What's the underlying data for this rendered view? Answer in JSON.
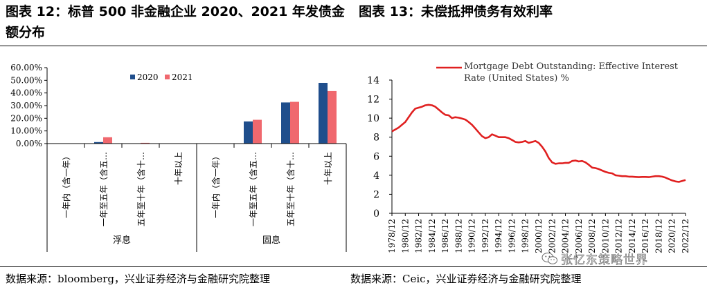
{
  "left_panel": {
    "title": "图表 12：标普 500 非金融企业 2020、2021 年发债金额分布",
    "source": "数据来源：bloomberg，兴业证券经济与金融研究院整理"
  },
  "right_panel": {
    "title": "图表 13：未偿抵押债务有效利率",
    "source": "数据来源：Ceic，兴业证券经济与金融研究院整理"
  },
  "watermark": {
    "text": "张忆东策略世界",
    "icon": "wechat-icon"
  },
  "colors": {
    "series_2020": "#1F4E8C",
    "series_2021": "#F0686E",
    "line": "#E02020"
  },
  "chart_data": [
    {
      "type": "bar",
      "title": "",
      "xlabel": "",
      "ylabel": "",
      "ylim": [
        0,
        60
      ],
      "y_ticks": [
        "60.00%",
        "50.00%",
        "40.00%",
        "30.00%",
        "20.00%",
        "10.00%",
        "0.00%"
      ],
      "y_tick_values": [
        60,
        50,
        40,
        30,
        20,
        10,
        0
      ],
      "categories": [
        "一年内（含一年）",
        "一年至五年（含五…",
        "五年至十年（含十…",
        "十年以上",
        "一年内（含一年）",
        "一年至五年（含五…",
        "五年至十年（含十…",
        "十年以上"
      ],
      "groups": [
        {
          "label": "浮息",
          "categories": [
            0,
            1,
            2,
            3
          ]
        },
        {
          "label": "固息",
          "categories": [
            4,
            5,
            6,
            7
          ]
        }
      ],
      "series": [
        {
          "name": "2020",
          "values": [
            0.0,
            1.2,
            0.2,
            0.0,
            0.0,
            17.5,
            32.5,
            48.0
          ]
        },
        {
          "name": "2021",
          "values": [
            0.0,
            5.0,
            0.6,
            0.0,
            0.0,
            18.8,
            33.0,
            41.5
          ]
        }
      ],
      "legend": "top-center",
      "grid": false
    },
    {
      "type": "line",
      "title": "",
      "xlabel": "",
      "ylabel": "",
      "ylim": [
        0,
        14
      ],
      "y_ticks": [
        0,
        2,
        4,
        6,
        8,
        10,
        12,
        14
      ],
      "x_ticks": [
        "1978/12",
        "1980/12",
        "1982/12",
        "1984/12",
        "1986/12",
        "1988/12",
        "1990/12",
        "1992/12",
        "1994/12",
        "1996/12",
        "1998/12",
        "2000/12",
        "2002/12",
        "2004/12",
        "2006/12",
        "2008/12",
        "2010/12",
        "2012/12",
        "2014/12",
        "2016/12",
        "2018/12",
        "2020/12",
        "2022/12"
      ],
      "legend": "top",
      "grid": false,
      "series": [
        {
          "name": "Mortgage Debt Outstanding: Effective Interest Rate (United States) %",
          "x": [
            "1978/12",
            "1979/12",
            "1980/06",
            "1980/12",
            "1981/12",
            "1982/06",
            "1982/12",
            "1983/06",
            "1983/12",
            "1984/06",
            "1984/12",
            "1985/06",
            "1985/12",
            "1986/06",
            "1986/12",
            "1987/06",
            "1987/12",
            "1988/06",
            "1988/12",
            "1989/06",
            "1989/12",
            "1990/06",
            "1990/12",
            "1991/06",
            "1991/12",
            "1992/06",
            "1992/12",
            "1993/06",
            "1993/12",
            "1994/06",
            "1994/12",
            "1995/06",
            "1995/12",
            "1996/06",
            "1996/12",
            "1997/06",
            "1997/12",
            "1998/06",
            "1998/12",
            "1999/06",
            "1999/12",
            "2000/06",
            "2000/12",
            "2001/06",
            "2001/12",
            "2002/06",
            "2002/12",
            "2003/06",
            "2003/12",
            "2004/06",
            "2004/12",
            "2005/06",
            "2005/12",
            "2006/06",
            "2006/12",
            "2007/06",
            "2007/12",
            "2008/06",
            "2008/12",
            "2009/06",
            "2009/12",
            "2010/06",
            "2010/12",
            "2011/06",
            "2011/12",
            "2012/06",
            "2012/12",
            "2013/06",
            "2013/12",
            "2014/06",
            "2014/12",
            "2015/06",
            "2015/12",
            "2016/06",
            "2016/12",
            "2017/06",
            "2017/12",
            "2018/06",
            "2018/12",
            "2019/06",
            "2019/12",
            "2020/06",
            "2020/12",
            "2021/06",
            "2021/12",
            "2022/06",
            "2022/12"
          ],
          "y": [
            8.6,
            9.0,
            9.3,
            9.6,
            10.6,
            11.0,
            11.1,
            11.2,
            11.35,
            11.4,
            11.35,
            11.2,
            10.9,
            10.6,
            10.35,
            10.3,
            10.0,
            10.1,
            10.05,
            9.95,
            9.85,
            9.6,
            9.3,
            8.9,
            8.5,
            8.1,
            7.9,
            8.0,
            8.3,
            8.15,
            8.0,
            8.0,
            8.0,
            7.9,
            7.7,
            7.5,
            7.45,
            7.5,
            7.6,
            7.4,
            7.5,
            7.6,
            7.4,
            7.0,
            6.5,
            5.8,
            5.35,
            5.2,
            5.25,
            5.25,
            5.3,
            5.3,
            5.5,
            5.55,
            5.45,
            5.5,
            5.35,
            5.1,
            4.8,
            4.75,
            4.65,
            4.5,
            4.35,
            4.25,
            4.2,
            4.0,
            3.95,
            3.9,
            3.9,
            3.85,
            3.85,
            3.82,
            3.8,
            3.82,
            3.82,
            3.8,
            3.85,
            3.9,
            3.9,
            3.85,
            3.75,
            3.6,
            3.45,
            3.35,
            3.3,
            3.4,
            3.5
          ]
        }
      ]
    }
  ]
}
